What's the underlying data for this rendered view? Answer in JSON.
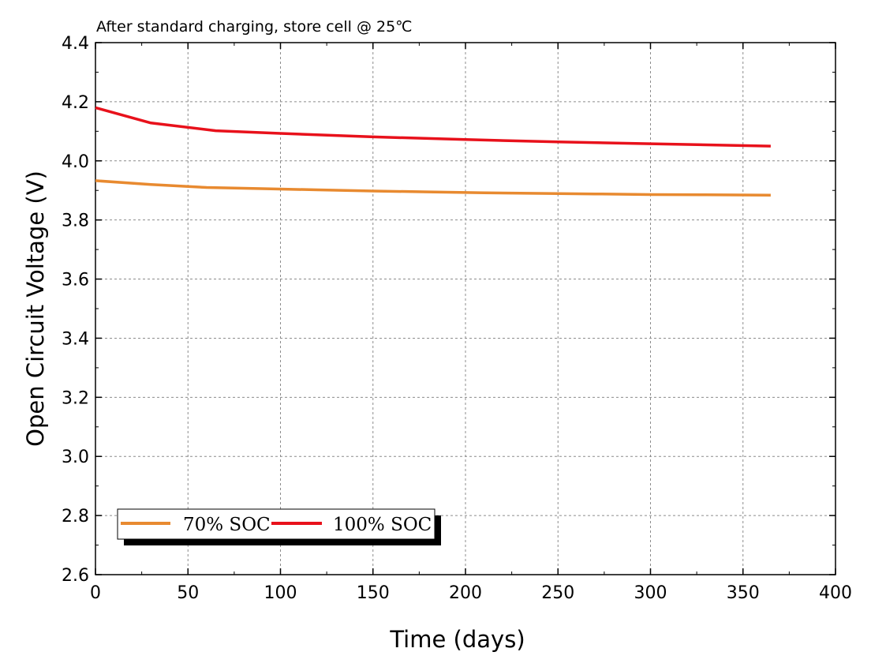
{
  "chart_data": {
    "type": "line",
    "title": "After standard charging, store cell @ 25℃",
    "xlabel": "Time  (days)",
    "ylabel": "Open Circuit Voltage  (V)",
    "xlim": [
      0,
      400
    ],
    "ylim": [
      2.6,
      4.4
    ],
    "xticks": [
      "0",
      "50",
      "100",
      "150",
      "200",
      "250",
      "300",
      "350",
      "400"
    ],
    "yticks": [
      "2.6",
      "2.8",
      "3.0",
      "3.2",
      "3.4",
      "3.6",
      "3.8",
      "4.0",
      "4.2",
      "4.4"
    ],
    "grid": true,
    "legend_position": "bottom-left",
    "series": [
      {
        "name": "70% SOC",
        "color": "#e88a30",
        "x": [
          0,
          30,
          60,
          90,
          120,
          150,
          180,
          210,
          240,
          270,
          300,
          330,
          365
        ],
        "y": [
          3.933,
          3.92,
          3.91,
          3.906,
          3.902,
          3.898,
          3.895,
          3.892,
          3.89,
          3.888,
          3.886,
          3.885,
          3.884
        ]
      },
      {
        "name": "100% SOC",
        "color": "#e8111b",
        "x": [
          0,
          30,
          65,
          100,
          150,
          200,
          250,
          300,
          365
        ],
        "y": [
          4.18,
          4.128,
          4.102,
          4.093,
          4.081,
          4.072,
          4.064,
          4.058,
          4.05
        ]
      }
    ]
  }
}
